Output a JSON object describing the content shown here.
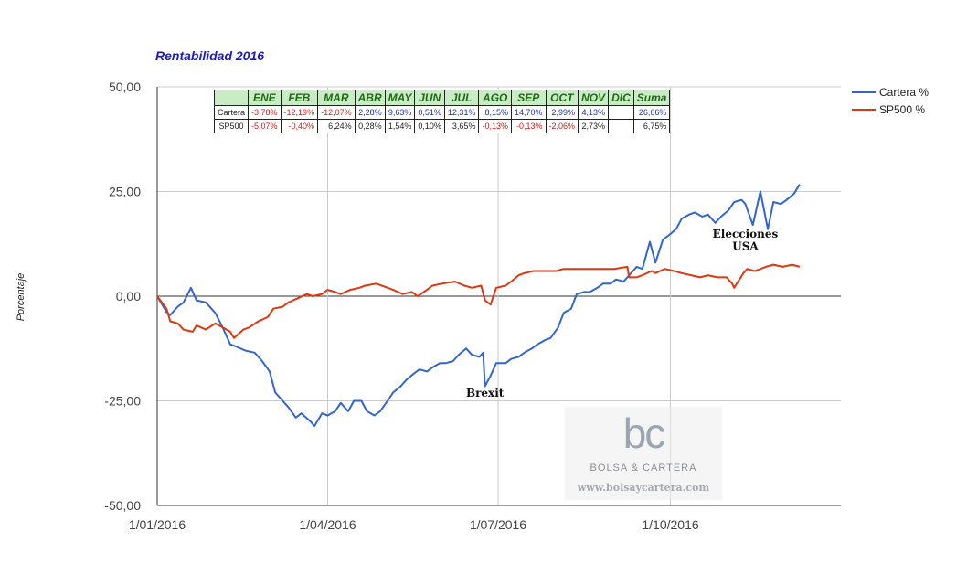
{
  "chart_data": {
    "type": "line",
    "title": "Rentabilidad 2016",
    "ylabel": "Porcentaje",
    "xlabel": "",
    "ylim": [
      -50,
      50
    ],
    "y_ticks": [
      "50,00",
      "25,00",
      "0,00",
      "-25,00",
      "-50,00"
    ],
    "x_ticks": [
      "1/01/2016",
      "1/04/2016",
      "1/07/2016",
      "1/10/2016"
    ],
    "grid": true,
    "legend": "right",
    "series": [
      {
        "name": "Cartera %",
        "color": "#3366cc",
        "points": [
          [
            "2016-01-01",
            0
          ],
          [
            "2016-01-06",
            -3.8
          ],
          [
            "2016-01-08",
            -4.5
          ],
          [
            "2016-01-12",
            -2.5
          ],
          [
            "2016-01-15",
            -1.5
          ],
          [
            "2016-01-19",
            2.0
          ],
          [
            "2016-01-22",
            -1.0
          ],
          [
            "2016-01-27",
            -1.5
          ],
          [
            "2016-02-01",
            -4.0
          ],
          [
            "2016-02-05",
            -7.5
          ],
          [
            "2016-02-09",
            -11.5
          ],
          [
            "2016-02-12",
            -12.0
          ],
          [
            "2016-02-17",
            -13.0
          ],
          [
            "2016-02-22",
            -13.5
          ],
          [
            "2016-02-26",
            -15.5
          ],
          [
            "2016-03-01",
            -18.0
          ],
          [
            "2016-03-04",
            -23.0
          ],
          [
            "2016-03-08",
            -25.0
          ],
          [
            "2016-03-11",
            -26.5
          ],
          [
            "2016-03-15",
            -29.0
          ],
          [
            "2016-03-18",
            -28.0
          ],
          [
            "2016-03-23",
            -30.0
          ],
          [
            "2016-03-25",
            -31.0
          ],
          [
            "2016-03-29",
            -28.0
          ],
          [
            "2016-04-01",
            -28.5
          ],
          [
            "2016-04-05",
            -27.5
          ],
          [
            "2016-04-08",
            -25.5
          ],
          [
            "2016-04-12",
            -27.5
          ],
          [
            "2016-04-15",
            -25.0
          ],
          [
            "2016-04-19",
            -25.0
          ],
          [
            "2016-04-22",
            -27.5
          ],
          [
            "2016-04-26",
            -28.5
          ],
          [
            "2016-04-29",
            -27.5
          ],
          [
            "2016-05-03",
            -25.0
          ],
          [
            "2016-05-06",
            -23.0
          ],
          [
            "2016-05-10",
            -21.5
          ],
          [
            "2016-05-13",
            -20.0
          ],
          [
            "2016-05-17",
            -18.5
          ],
          [
            "2016-05-20",
            -17.5
          ],
          [
            "2016-05-24",
            -18.0
          ],
          [
            "2016-05-27",
            -17.0
          ],
          [
            "2016-05-31",
            -16.0
          ],
          [
            "2016-06-03",
            -16.0
          ],
          [
            "2016-06-07",
            -15.5
          ],
          [
            "2016-06-10",
            -14.0
          ],
          [
            "2016-06-14",
            -12.5
          ],
          [
            "2016-06-17",
            -14.0
          ],
          [
            "2016-06-21",
            -14.5
          ],
          [
            "2016-06-23",
            -13.5
          ],
          [
            "2016-06-24",
            -21.5
          ],
          [
            "2016-06-27",
            -19.0
          ],
          [
            "2016-06-30",
            -16.0
          ],
          [
            "2016-07-05",
            -16.0
          ],
          [
            "2016-07-08",
            -15.0
          ],
          [
            "2016-07-12",
            -14.5
          ],
          [
            "2016-07-15",
            -13.5
          ],
          [
            "2016-07-19",
            -12.5
          ],
          [
            "2016-07-22",
            -11.5
          ],
          [
            "2016-07-26",
            -10.5
          ],
          [
            "2016-07-29",
            -10.0
          ],
          [
            "2016-08-02",
            -7.5
          ],
          [
            "2016-08-05",
            -4.0
          ],
          [
            "2016-08-09",
            -3.0
          ],
          [
            "2016-08-12",
            0.5
          ],
          [
            "2016-08-16",
            1.0
          ],
          [
            "2016-08-19",
            1.0
          ],
          [
            "2016-08-23",
            2.0
          ],
          [
            "2016-08-26",
            3.0
          ],
          [
            "2016-08-30",
            3.0
          ],
          [
            "2016-09-02",
            4.0
          ],
          [
            "2016-09-06",
            3.5
          ],
          [
            "2016-09-09",
            5.0
          ],
          [
            "2016-09-13",
            7.0
          ],
          [
            "2016-09-16",
            6.5
          ],
          [
            "2016-09-20",
            13.0
          ],
          [
            "2016-09-23",
            8.0
          ],
          [
            "2016-09-27",
            13.5
          ],
          [
            "2016-09-30",
            14.5
          ],
          [
            "2016-10-04",
            16.0
          ],
          [
            "2016-10-07",
            18.5
          ],
          [
            "2016-10-11",
            19.5
          ],
          [
            "2016-10-14",
            20.0
          ],
          [
            "2016-10-18",
            19.0
          ],
          [
            "2016-10-21",
            19.5
          ],
          [
            "2016-10-25",
            17.5
          ],
          [
            "2016-10-28",
            19.0
          ],
          [
            "2016-11-01",
            20.5
          ],
          [
            "2016-11-04",
            22.5
          ],
          [
            "2016-11-08",
            23.0
          ],
          [
            "2016-11-10",
            22.0
          ],
          [
            "2016-11-14",
            17.0
          ],
          [
            "2016-11-18",
            25.0
          ],
          [
            "2016-11-22",
            16.0
          ],
          [
            "2016-11-25",
            22.5
          ],
          [
            "2016-11-29",
            22.0
          ],
          [
            "2016-12-02",
            23.0
          ],
          [
            "2016-12-06",
            24.5
          ],
          [
            "2016-12-09",
            26.7
          ]
        ]
      },
      {
        "name": "SP500 %",
        "color": "#dc3912",
        "points": [
          [
            "2016-01-01",
            0
          ],
          [
            "2016-01-06",
            -3.0
          ],
          [
            "2016-01-08",
            -6.0
          ],
          [
            "2016-01-12",
            -6.5
          ],
          [
            "2016-01-15",
            -8.0
          ],
          [
            "2016-01-20",
            -8.5
          ],
          [
            "2016-01-22",
            -7.0
          ],
          [
            "2016-01-27",
            -8.0
          ],
          [
            "2016-02-01",
            -6.5
          ],
          [
            "2016-02-05",
            -7.5
          ],
          [
            "2016-02-09",
            -8.5
          ],
          [
            "2016-02-11",
            -10.0
          ],
          [
            "2016-02-16",
            -8.0
          ],
          [
            "2016-02-19",
            -7.5
          ],
          [
            "2016-02-24",
            -6.0
          ],
          [
            "2016-02-29",
            -5.0
          ],
          [
            "2016-03-03",
            -3.0
          ],
          [
            "2016-03-08",
            -2.5
          ],
          [
            "2016-03-11",
            -1.5
          ],
          [
            "2016-03-16",
            -0.5
          ],
          [
            "2016-03-21",
            0.5
          ],
          [
            "2016-03-24",
            0.0
          ],
          [
            "2016-03-29",
            0.5
          ],
          [
            "2016-04-01",
            1.5
          ],
          [
            "2016-04-05",
            1.0
          ],
          [
            "2016-04-08",
            0.5
          ],
          [
            "2016-04-13",
            1.5
          ],
          [
            "2016-04-18",
            2.0
          ],
          [
            "2016-04-21",
            2.5
          ],
          [
            "2016-04-27",
            3.0
          ],
          [
            "2016-05-03",
            2.0
          ],
          [
            "2016-05-06",
            1.5
          ],
          [
            "2016-05-11",
            0.5
          ],
          [
            "2016-05-16",
            1.0
          ],
          [
            "2016-05-19",
            0.0
          ],
          [
            "2016-05-24",
            1.5
          ],
          [
            "2016-05-27",
            2.5
          ],
          [
            "2016-06-01",
            3.0
          ],
          [
            "2016-06-08",
            3.5
          ],
          [
            "2016-06-13",
            2.5
          ],
          [
            "2016-06-17",
            2.0
          ],
          [
            "2016-06-22",
            2.5
          ],
          [
            "2016-06-24",
            -1.0
          ],
          [
            "2016-06-27",
            -2.0
          ],
          [
            "2016-06-30",
            2.0
          ],
          [
            "2016-07-05",
            2.5
          ],
          [
            "2016-07-08",
            3.5
          ],
          [
            "2016-07-12",
            5.0
          ],
          [
            "2016-07-15",
            5.5
          ],
          [
            "2016-07-20",
            6.0
          ],
          [
            "2016-07-26",
            6.0
          ],
          [
            "2016-08-01",
            6.0
          ],
          [
            "2016-08-05",
            6.5
          ],
          [
            "2016-08-10",
            6.5
          ],
          [
            "2016-08-16",
            6.5
          ],
          [
            "2016-08-22",
            6.5
          ],
          [
            "2016-08-29",
            6.5
          ],
          [
            "2016-09-01",
            6.5
          ],
          [
            "2016-09-08",
            7.0
          ],
          [
            "2016-09-09",
            4.5
          ],
          [
            "2016-09-13",
            4.5
          ],
          [
            "2016-09-16",
            5.0
          ],
          [
            "2016-09-21",
            6.0
          ],
          [
            "2016-09-23",
            5.5
          ],
          [
            "2016-09-28",
            6.5
          ],
          [
            "2016-10-03",
            6.0
          ],
          [
            "2016-10-07",
            5.5
          ],
          [
            "2016-10-12",
            5.0
          ],
          [
            "2016-10-17",
            4.5
          ],
          [
            "2016-10-21",
            5.0
          ],
          [
            "2016-10-26",
            4.5
          ],
          [
            "2016-10-31",
            4.5
          ],
          [
            "2016-11-03",
            3.0
          ],
          [
            "2016-11-04",
            2.0
          ],
          [
            "2016-11-09",
            5.5
          ],
          [
            "2016-11-11",
            6.5
          ],
          [
            "2016-11-15",
            6.0
          ],
          [
            "2016-11-21",
            7.0
          ],
          [
            "2016-11-25",
            7.5
          ],
          [
            "2016-11-30",
            7.0
          ],
          [
            "2016-12-05",
            7.5
          ],
          [
            "2016-12-09",
            7.0
          ]
        ]
      }
    ],
    "annotations": [
      {
        "text": "Brexit",
        "x": "2016-06-24",
        "y": -24
      },
      {
        "text": "Elecciones",
        "x": "2016-11-10",
        "y": 14
      },
      {
        "text": "USA",
        "x": "2016-11-10",
        "y": 11
      }
    ]
  },
  "table": {
    "corner": "",
    "headers": [
      "ENE",
      "FEB",
      "MAR",
      "ABR",
      "MAY",
      "JUN",
      "JUL",
      "AGO",
      "SEP",
      "OCT",
      "NOV",
      "DIC",
      "Suma"
    ],
    "rows": [
      {
        "name": "Cartera",
        "cells": [
          {
            "v": "-3,78%",
            "c": "neg"
          },
          {
            "v": "-12,19%",
            "c": "neg"
          },
          {
            "v": "-12,07%",
            "c": "neg"
          },
          {
            "v": "2,28%",
            "c": "pos"
          },
          {
            "v": "9,63%",
            "c": "pos"
          },
          {
            "v": "0,51%",
            "c": "pos"
          },
          {
            "v": "12,31%",
            "c": "pos"
          },
          {
            "v": "8,15%",
            "c": "pos"
          },
          {
            "v": "14,70%",
            "c": "pos"
          },
          {
            "v": "2,99%",
            "c": "pos"
          },
          {
            "v": "4,13%",
            "c": "pos"
          },
          {
            "v": "",
            "c": "blk"
          },
          {
            "v": "26,66%",
            "c": "pos"
          }
        ]
      },
      {
        "name": "SP500",
        "cells": [
          {
            "v": "-5,07%",
            "c": "neg"
          },
          {
            "v": "-0,40%",
            "c": "neg"
          },
          {
            "v": "6,24%",
            "c": "blk"
          },
          {
            "v": "0,28%",
            "c": "blk"
          },
          {
            "v": "1,54%",
            "c": "blk"
          },
          {
            "v": "0,10%",
            "c": "blk"
          },
          {
            "v": "3,65%",
            "c": "blk"
          },
          {
            "v": "-0,13%",
            "c": "neg"
          },
          {
            "v": "-0,13%",
            "c": "neg"
          },
          {
            "v": "-2,06%",
            "c": "neg"
          },
          {
            "v": "2,73%",
            "c": "blk"
          },
          {
            "v": "",
            "c": "blk"
          },
          {
            "v": "6,75%",
            "c": "blk"
          }
        ]
      }
    ]
  },
  "watermark": {
    "logo": "bc",
    "name": "BOLSA & CARTERA",
    "url": "www.bolsaycartera.com"
  }
}
